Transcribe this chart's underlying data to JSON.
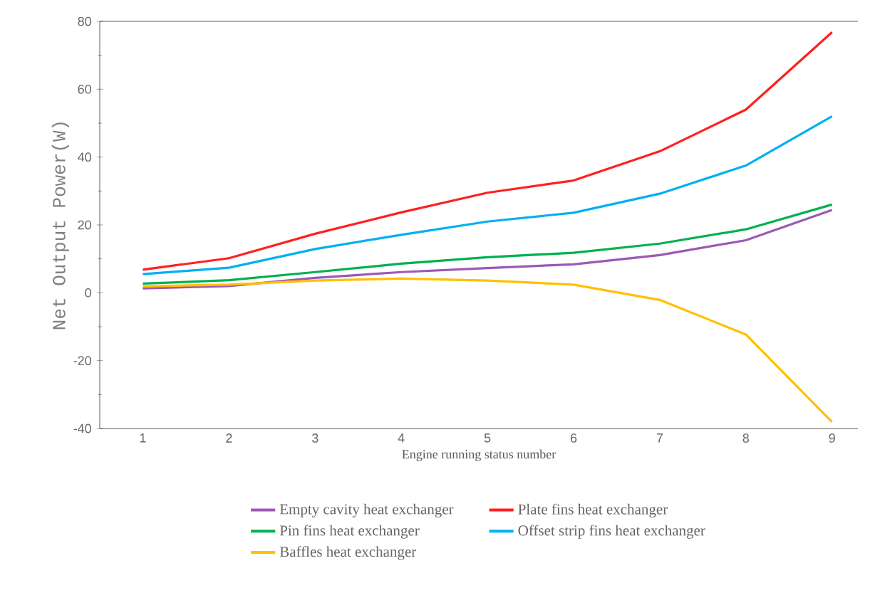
{
  "chart_data": {
    "type": "line",
    "xlabel": "Engine running status number",
    "ylabel": "Net Output Power(W)",
    "x": [
      1,
      2,
      3,
      4,
      5,
      6,
      7,
      8,
      9
    ],
    "xlim": [
      0.5,
      9.3
    ],
    "xticks": [
      1,
      2,
      3,
      4,
      5,
      6,
      7,
      8,
      9
    ],
    "ylim": [
      -40,
      80
    ],
    "yticks": [
      -40,
      -20,
      0,
      20,
      40,
      60,
      80
    ],
    "grid": false,
    "legend": "bottom",
    "marker": "none",
    "line_style": "solid",
    "series": [
      {
        "name": "Empty cavity heat exchanger",
        "color": "#9b59b6",
        "values": [
          1.3,
          2.0,
          4.4,
          6.1,
          7.3,
          8.4,
          11.1,
          15.5,
          24.4
        ]
      },
      {
        "name": "Plate fins heat exchanger",
        "color": "#ff2020",
        "values": [
          6.8,
          10.2,
          17.4,
          23.7,
          29.5,
          33.1,
          41.7,
          54,
          76.8
        ]
      },
      {
        "name": "Pin fins heat exchanger",
        "color": "#00b050",
        "values": [
          2.7,
          3.7,
          6.1,
          8.6,
          10.5,
          11.8,
          14.5,
          18.7,
          26
        ]
      },
      {
        "name": "Offset strip fins heat exchanger",
        "color": "#00b0f0",
        "values": [
          5.5,
          7.4,
          12.9,
          17.1,
          21,
          23.6,
          29.2,
          37.5,
          52
        ]
      },
      {
        "name": "Baffles heat exchanger",
        "color": "#ffc000",
        "values": [
          1.9,
          2.4,
          3.6,
          4.2,
          3.6,
          2.4,
          -2.1,
          -12.3,
          -38.1
        ]
      }
    ]
  }
}
